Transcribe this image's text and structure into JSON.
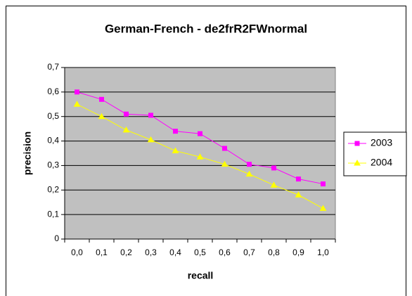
{
  "chart_data": {
    "type": "line",
    "title": "German-French - de2frR2FWnormal",
    "x_label": "recall",
    "y_label": "precision",
    "categories": [
      "0,0",
      "0,1",
      "0,2",
      "0,3",
      "0,4",
      "0,5",
      "0,6",
      "0,7",
      "0,8",
      "0,9",
      "1,0"
    ],
    "series": [
      {
        "name": "2003",
        "color": "#ff00ff",
        "marker": "square",
        "values": [
          0.6,
          0.57,
          0.51,
          0.505,
          0.44,
          0.43,
          0.37,
          0.305,
          0.29,
          0.245,
          0.225
        ]
      },
      {
        "name": "2004",
        "color": "#ffff00",
        "marker": "triangle",
        "values": [
          0.55,
          0.5,
          0.445,
          0.405,
          0.36,
          0.335,
          0.305,
          0.265,
          0.22,
          0.18,
          0.125
        ]
      }
    ],
    "ylim": [
      0,
      0.7
    ],
    "yticks": [
      {
        "value": 0,
        "label": "0"
      },
      {
        "value": 0.1,
        "label": "0,1"
      },
      {
        "value": 0.2,
        "label": "0,2"
      },
      {
        "value": 0.3,
        "label": "0,3"
      },
      {
        "value": 0.4,
        "label": "0,4"
      },
      {
        "value": 0.5,
        "label": "0,5"
      },
      {
        "value": 0.6,
        "label": "0,6"
      },
      {
        "value": 0.7,
        "label": "0,7"
      }
    ],
    "grid": true,
    "legend": "right"
  }
}
